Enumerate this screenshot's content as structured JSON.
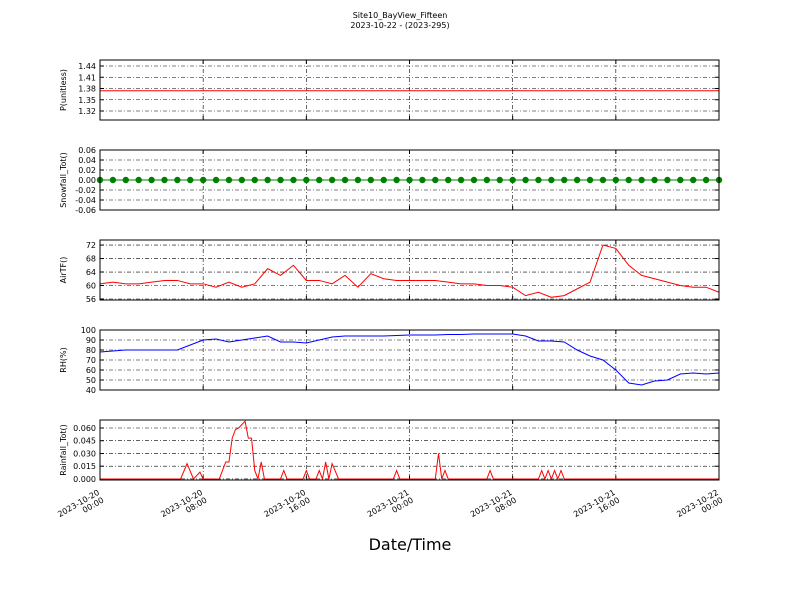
{
  "chart_data": [
    {
      "type": "line",
      "title": "Site10_BayView_Fifteen",
      "subtitle": "2023-10-22 - (2023-295)",
      "ylabel": "P(unitless)",
      "color": "#ff0000",
      "x": [
        "2023-10-20 00:00",
        "2023-10-20 01:00",
        "2023-10-20 02:00",
        "2023-10-20 03:00",
        "2023-10-20 04:00",
        "2023-10-20 05:00",
        "2023-10-20 06:00",
        "2023-10-20 07:00",
        "2023-10-20 08:00",
        "2023-10-20 09:00",
        "2023-10-20 10:00",
        "2023-10-20 11:00",
        "2023-10-20 12:00",
        "2023-10-20 13:00",
        "2023-10-20 14:00",
        "2023-10-20 15:00",
        "2023-10-20 16:00",
        "2023-10-20 17:00",
        "2023-10-20 18:00",
        "2023-10-20 19:00",
        "2023-10-20 20:00",
        "2023-10-20 21:00",
        "2023-10-20 22:00",
        "2023-10-20 23:00",
        "2023-10-21 00:00",
        "2023-10-21 01:00",
        "2023-10-21 02:00",
        "2023-10-21 03:00",
        "2023-10-21 04:00",
        "2023-10-21 05:00",
        "2023-10-21 06:00",
        "2023-10-21 07:00",
        "2023-10-21 08:00",
        "2023-10-21 09:00",
        "2023-10-21 10:00",
        "2023-10-21 11:00",
        "2023-10-21 12:00",
        "2023-10-21 13:00",
        "2023-10-21 14:00",
        "2023-10-21 15:00",
        "2023-10-21 16:00",
        "2023-10-21 17:00",
        "2023-10-21 18:00",
        "2023-10-21 19:00",
        "2023-10-21 20:00",
        "2023-10-21 21:00",
        "2023-10-21 22:00",
        "2023-10-21 23:00",
        "2023-10-22 00:00"
      ],
      "values": [
        1.374,
        1.374,
        1.374,
        1.374,
        1.374,
        1.374,
        1.374,
        1.374,
        1.374,
        1.374,
        1.374,
        1.374,
        1.374,
        1.374,
        1.374,
        1.374,
        1.374,
        1.374,
        1.374,
        1.374,
        1.374,
        1.374,
        1.374,
        1.374,
        1.374,
        1.374,
        1.374,
        1.374,
        1.374,
        1.374,
        1.374,
        1.374,
        1.374,
        1.374,
        1.374,
        1.374,
        1.374,
        1.374,
        1.374,
        1.374,
        1.374,
        1.374,
        1.374,
        1.374,
        1.374,
        1.374,
        1.374,
        1.374,
        1.374
      ],
      "xlim": [
        "2023-10-20 00:00",
        "2023-10-22 00:00"
      ],
      "xticks": [
        "2023-10-20 00:00",
        "2023-10-20 08:00",
        "2023-10-20 16:00",
        "2023-10-21 00:00",
        "2023-10-21 08:00",
        "2023-10-21 16:00",
        "2023-10-22 00:00"
      ],
      "ylim": [
        1.296,
        1.456
      ],
      "yticks": [
        1.32,
        1.35,
        1.38,
        1.41,
        1.44
      ],
      "grid": true
    },
    {
      "type": "line",
      "ylabel": "Snowfall_Tot()",
      "color": "#008000",
      "marker": "o",
      "x": [
        "2023-10-20 00:00",
        "2023-10-20 01:00",
        "2023-10-20 02:00",
        "2023-10-20 03:00",
        "2023-10-20 04:00",
        "2023-10-20 05:00",
        "2023-10-20 06:00",
        "2023-10-20 07:00",
        "2023-10-20 08:00",
        "2023-10-20 09:00",
        "2023-10-20 10:00",
        "2023-10-20 11:00",
        "2023-10-20 12:00",
        "2023-10-20 13:00",
        "2023-10-20 14:00",
        "2023-10-20 15:00",
        "2023-10-20 16:00",
        "2023-10-20 17:00",
        "2023-10-20 18:00",
        "2023-10-20 19:00",
        "2023-10-20 20:00",
        "2023-10-20 21:00",
        "2023-10-20 22:00",
        "2023-10-20 23:00",
        "2023-10-21 00:00",
        "2023-10-21 01:00",
        "2023-10-21 02:00",
        "2023-10-21 03:00",
        "2023-10-21 04:00",
        "2023-10-21 05:00",
        "2023-10-21 06:00",
        "2023-10-21 07:00",
        "2023-10-21 08:00",
        "2023-10-21 09:00",
        "2023-10-21 10:00",
        "2023-10-21 11:00",
        "2023-10-21 12:00",
        "2023-10-21 13:00",
        "2023-10-21 14:00",
        "2023-10-21 15:00",
        "2023-10-21 16:00",
        "2023-10-21 17:00",
        "2023-10-21 18:00",
        "2023-10-21 19:00",
        "2023-10-21 20:00",
        "2023-10-21 21:00",
        "2023-10-21 22:00",
        "2023-10-21 23:00",
        "2023-10-22 00:00"
      ],
      "values": [
        0,
        0,
        0,
        0,
        0,
        0,
        0,
        0,
        0,
        0,
        0,
        0,
        0,
        0,
        0,
        0,
        0,
        0,
        0,
        0,
        0,
        0,
        0,
        0,
        0,
        0,
        0,
        0,
        0,
        0,
        0,
        0,
        0,
        0,
        0,
        0,
        0,
        0,
        0,
        0,
        0,
        0,
        0,
        0,
        0,
        0,
        0,
        0,
        0
      ],
      "xlim": [
        "2023-10-20 00:00",
        "2023-10-22 00:00"
      ],
      "xticks": [
        "2023-10-20 00:00",
        "2023-10-20 08:00",
        "2023-10-20 16:00",
        "2023-10-21 00:00",
        "2023-10-21 08:00",
        "2023-10-21 16:00",
        "2023-10-22 00:00"
      ],
      "ylim": [
        -0.06,
        0.06
      ],
      "yticks": [
        -0.06,
        -0.04,
        -0.02,
        {
          "value": 0,
          "label": "0.00"
        },
        0.02,
        0.04,
        0.06
      ],
      "grid": true
    },
    {
      "type": "line",
      "ylabel": "AirTF()",
      "color": "#ff0000",
      "x": [
        "2023-10-20 00:00",
        "2023-10-20 01:00",
        "2023-10-20 02:00",
        "2023-10-20 03:00",
        "2023-10-20 04:00",
        "2023-10-20 05:00",
        "2023-10-20 06:00",
        "2023-10-20 07:00",
        "2023-10-20 08:00",
        "2023-10-20 09:00",
        "2023-10-20 10:00",
        "2023-10-20 11:00",
        "2023-10-20 12:00",
        "2023-10-20 13:00",
        "2023-10-20 14:00",
        "2023-10-20 15:00",
        "2023-10-20 16:00",
        "2023-10-20 17:00",
        "2023-10-20 18:00",
        "2023-10-20 19:00",
        "2023-10-20 20:00",
        "2023-10-20 21:00",
        "2023-10-20 22:00",
        "2023-10-20 23:00",
        "2023-10-21 00:00",
        "2023-10-21 01:00",
        "2023-10-21 02:00",
        "2023-10-21 03:00",
        "2023-10-21 04:00",
        "2023-10-21 05:00",
        "2023-10-21 06:00",
        "2023-10-21 07:00",
        "2023-10-21 08:00",
        "2023-10-21 09:00",
        "2023-10-21 10:00",
        "2023-10-21 11:00",
        "2023-10-21 12:00",
        "2023-10-21 13:00",
        "2023-10-21 14:00",
        "2023-10-21 15:00",
        "2023-10-21 16:00",
        "2023-10-21 17:00",
        "2023-10-21 18:00",
        "2023-10-21 19:00",
        "2023-10-21 20:00",
        "2023-10-21 21:00",
        "2023-10-21 22:00",
        "2023-10-21 23:00",
        "2023-10-22 00:00"
      ],
      "values": [
        60.5,
        61,
        60.5,
        60.5,
        61,
        61.5,
        61.5,
        60.5,
        60.5,
        59.5,
        61,
        59.5,
        60.5,
        65,
        63,
        66,
        61.5,
        61.5,
        60.5,
        63,
        59.5,
        63.5,
        62,
        61.5,
        61.5,
        61.5,
        61.5,
        61,
        60.5,
        60.5,
        60,
        60,
        59.5,
        57,
        58,
        56.5,
        57,
        59,
        61,
        72,
        71,
        66,
        63,
        62,
        61,
        60,
        59.5,
        59.5,
        58
      ],
      "xlim": [
        "2023-10-20 00:00",
        "2023-10-22 00:00"
      ],
      "xticks": [
        "2023-10-20 00:00",
        "2023-10-20 08:00",
        "2023-10-20 16:00",
        "2023-10-21 00:00",
        "2023-10-21 08:00",
        "2023-10-21 16:00",
        "2023-10-22 00:00"
      ],
      "ylim": [
        55.7,
        73.5
      ],
      "yticks": [
        56,
        60,
        64,
        68,
        72
      ],
      "grid": true
    },
    {
      "type": "line",
      "ylabel": "RH(%)",
      "color": "#0000ff",
      "x": [
        "2023-10-20 00:00",
        "2023-10-20 01:00",
        "2023-10-20 02:00",
        "2023-10-20 03:00",
        "2023-10-20 04:00",
        "2023-10-20 05:00",
        "2023-10-20 06:00",
        "2023-10-20 07:00",
        "2023-10-20 08:00",
        "2023-10-20 09:00",
        "2023-10-20 10:00",
        "2023-10-20 11:00",
        "2023-10-20 12:00",
        "2023-10-20 13:00",
        "2023-10-20 14:00",
        "2023-10-20 15:00",
        "2023-10-20 16:00",
        "2023-10-20 17:00",
        "2023-10-20 18:00",
        "2023-10-20 19:00",
        "2023-10-20 20:00",
        "2023-10-20 21:00",
        "2023-10-20 22:00",
        "2023-10-20 23:00",
        "2023-10-21 00:00",
        "2023-10-21 01:00",
        "2023-10-21 02:00",
        "2023-10-21 03:00",
        "2023-10-21 04:00",
        "2023-10-21 05:00",
        "2023-10-21 06:00",
        "2023-10-21 07:00",
        "2023-10-21 08:00",
        "2023-10-21 09:00",
        "2023-10-21 10:00",
        "2023-10-21 11:00",
        "2023-10-21 12:00",
        "2023-10-21 13:00",
        "2023-10-21 14:00",
        "2023-10-21 15:00",
        "2023-10-21 16:00",
        "2023-10-21 17:00",
        "2023-10-21 18:00",
        "2023-10-21 19:00",
        "2023-10-21 20:00",
        "2023-10-21 21:00",
        "2023-10-21 22:00",
        "2023-10-21 23:00",
        "2023-10-22 00:00"
      ],
      "values": [
        78,
        79,
        80,
        80,
        80,
        80,
        80,
        85,
        90,
        91,
        88,
        90,
        92,
        94,
        88,
        88,
        87,
        90,
        93,
        94,
        94,
        94,
        94,
        94.5,
        95,
        95,
        95,
        95.5,
        95.5,
        96,
        96,
        96,
        96,
        94,
        89,
        89,
        88,
        80,
        74,
        70,
        60,
        47,
        45,
        49,
        50,
        56,
        57,
        56,
        57
      ],
      "xlim": [
        "2023-10-20 00:00",
        "2023-10-22 00:00"
      ],
      "xticks": [
        "2023-10-20 00:00",
        "2023-10-20 08:00",
        "2023-10-20 16:00",
        "2023-10-21 00:00",
        "2023-10-21 08:00",
        "2023-10-21 16:00",
        "2023-10-22 00:00"
      ],
      "ylim": [
        40,
        100
      ],
      "yticks": [
        40,
        50,
        60,
        70,
        80,
        90,
        100
      ],
      "grid": true
    },
    {
      "type": "line",
      "ylabel": "Rainfall_Tot()",
      "xlabel": "Date/Time",
      "color": "#ff0000",
      "x": [
        "2023-10-20 00:00",
        "2023-10-20 06:15",
        "2023-10-20 06:45",
        "2023-10-20 07:15",
        "2023-10-20 07:45",
        "2023-10-20 08:00",
        "2023-10-20 09:15",
        "2023-10-20 09:45",
        "2023-10-20 10:00",
        "2023-10-20 10:15",
        "2023-10-20 10:30",
        "2023-10-20 10:45",
        "2023-10-20 11:15",
        "2023-10-20 11:30",
        "2023-10-20 11:45",
        "2023-10-20 12:00",
        "2023-10-20 12:15",
        "2023-10-20 12:30",
        "2023-10-20 12:45",
        "2023-10-20 14:00",
        "2023-10-20 14:15",
        "2023-10-20 14:30",
        "2023-10-20 15:45",
        "2023-10-20 16:00",
        "2023-10-20 16:15",
        "2023-10-20 16:45",
        "2023-10-20 17:00",
        "2023-10-20 17:15",
        "2023-10-20 17:30",
        "2023-10-20 17:45",
        "2023-10-20 18:00",
        "2023-10-20 18:30",
        "2023-10-20 22:45",
        "2023-10-20 23:00",
        "2023-10-20 23:15",
        "2023-10-21 02:00",
        "2023-10-21 02:15",
        "2023-10-21 02:30",
        "2023-10-21 02:45",
        "2023-10-21 03:00",
        "2023-10-21 06:00",
        "2023-10-21 06:15",
        "2023-10-21 06:30",
        "2023-10-21 10:00",
        "2023-10-21 10:15",
        "2023-10-21 10:30",
        "2023-10-21 10:45",
        "2023-10-21 11:00",
        "2023-10-21 11:15",
        "2023-10-21 11:30",
        "2023-10-21 11:45",
        "2023-10-21 12:00",
        "2023-10-22 00:00"
      ],
      "values": [
        0,
        0,
        0.018,
        0,
        0.008,
        0,
        0,
        0.02,
        0.02,
        0.048,
        0.058,
        0.06,
        0.068,
        0.048,
        0.048,
        0.01,
        0,
        0.02,
        0,
        0,
        0.01,
        0,
        0,
        0.01,
        0,
        0,
        0.01,
        0,
        0.02,
        0,
        0.018,
        0,
        0,
        0.01,
        0,
        0,
        0.03,
        0,
        0.01,
        0,
        0,
        0.01,
        0,
        0,
        0.01,
        0,
        0.01,
        0,
        0.01,
        0,
        0.01,
        0,
        0
      ],
      "xlim": [
        "2023-10-20 00:00",
        "2023-10-22 00:00"
      ],
      "xticks": [
        "2023-10-20 00:00",
        "2023-10-20 08:00",
        "2023-10-20 16:00",
        "2023-10-21 00:00",
        "2023-10-21 08:00",
        "2023-10-21 16:00",
        "2023-10-22 00:00"
      ],
      "ylim": [
        -0.0012,
        0.0694
      ],
      "yticks": [
        {
          "value": 0,
          "label": "0.000"
        },
        0.015,
        {
          "value": 0.03,
          "label": "0.030"
        },
        0.045,
        {
          "value": 0.06,
          "label": "0.060"
        }
      ],
      "grid": true
    }
  ]
}
